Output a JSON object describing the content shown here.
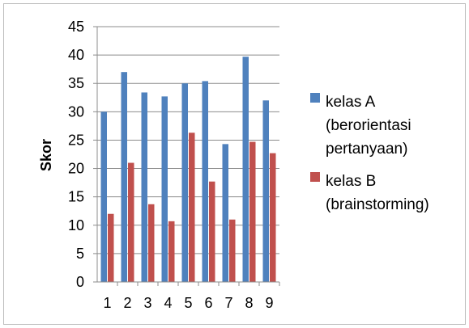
{
  "chart_data": {
    "type": "bar",
    "title": "",
    "xlabel": "",
    "ylabel": "Skor",
    "ylim": [
      0,
      45
    ],
    "yticks": [
      0,
      5,
      10,
      15,
      20,
      25,
      30,
      35,
      40,
      45
    ],
    "grid": "horizontal",
    "legend_position": "right",
    "categories": [
      "1",
      "2",
      "3",
      "4",
      "5",
      "6",
      "7",
      "8",
      "9"
    ],
    "series": [
      {
        "name": "kelas A (berorientasi pertanyaan)",
        "legend_lines": [
          "kelas A",
          "(berorientasi",
          "pertanyaan)"
        ],
        "color": "#4f81bd",
        "values": [
          30,
          37,
          33.4,
          32.7,
          35,
          35.4,
          24.3,
          39.7,
          32
        ]
      },
      {
        "name": "kelas B (brainstorming)",
        "legend_lines": [
          "kelas B",
          "(brainstorming)"
        ],
        "color": "#c0504d",
        "values": [
          12,
          21,
          13.7,
          10.7,
          26.3,
          17.7,
          11,
          24.7,
          22.7
        ]
      }
    ]
  }
}
